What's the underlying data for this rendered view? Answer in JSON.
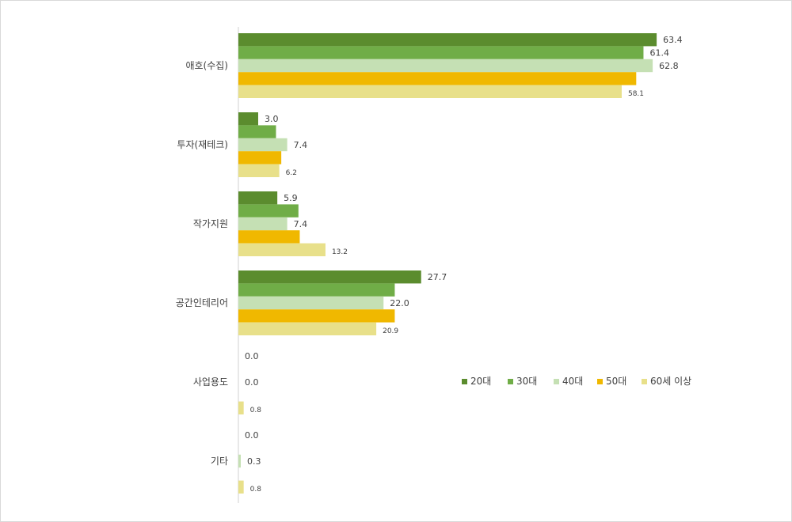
{
  "chart_data": {
    "type": "bar",
    "orientation": "horizontal",
    "categories": [
      "애호(수집)",
      "투자(재테크)",
      "작가지원",
      "공간인테리어",
      "사업용도",
      "기타"
    ],
    "series": [
      {
        "name": "20대",
        "color": "#5b8c2e",
        "values": [
          63.4,
          3.0,
          5.9,
          27.7,
          0.0,
          0.0
        ]
      },
      {
        "name": "30대",
        "color": "#70ad47",
        "values": [
          61.4,
          5.7,
          9.1,
          23.7,
          null,
          null
        ]
      },
      {
        "name": "40대",
        "color": "#c5e0b4",
        "values": [
          62.8,
          7.4,
          7.4,
          22.0,
          0.0,
          0.3
        ]
      },
      {
        "name": "50대",
        "color": "#f0b800",
        "values": [
          60.3,
          6.5,
          9.3,
          23.7,
          null,
          null
        ]
      },
      {
        "name": "60세 이상",
        "color": "#e8e08a",
        "values": [
          58.1,
          6.2,
          13.2,
          20.9,
          0.8,
          0.8
        ]
      }
    ],
    "data_labels": [
      [
        "63.4",
        "61.4",
        "62.8",
        "",
        "58.1"
      ],
      [
        "3.0",
        "",
        "7.4",
        "",
        "6.2"
      ],
      [
        "5.9",
        "",
        "7.4",
        "",
        "13.2"
      ],
      [
        "27.7",
        "",
        "22.0",
        "",
        "20.9"
      ],
      [
        "0.0",
        "",
        "0.0",
        "",
        "0.8"
      ],
      [
        "0.0",
        "",
        "0.3",
        "",
        "0.8"
      ]
    ],
    "xlim": [
      0,
      70
    ],
    "grid": false,
    "legend_position": "right"
  }
}
